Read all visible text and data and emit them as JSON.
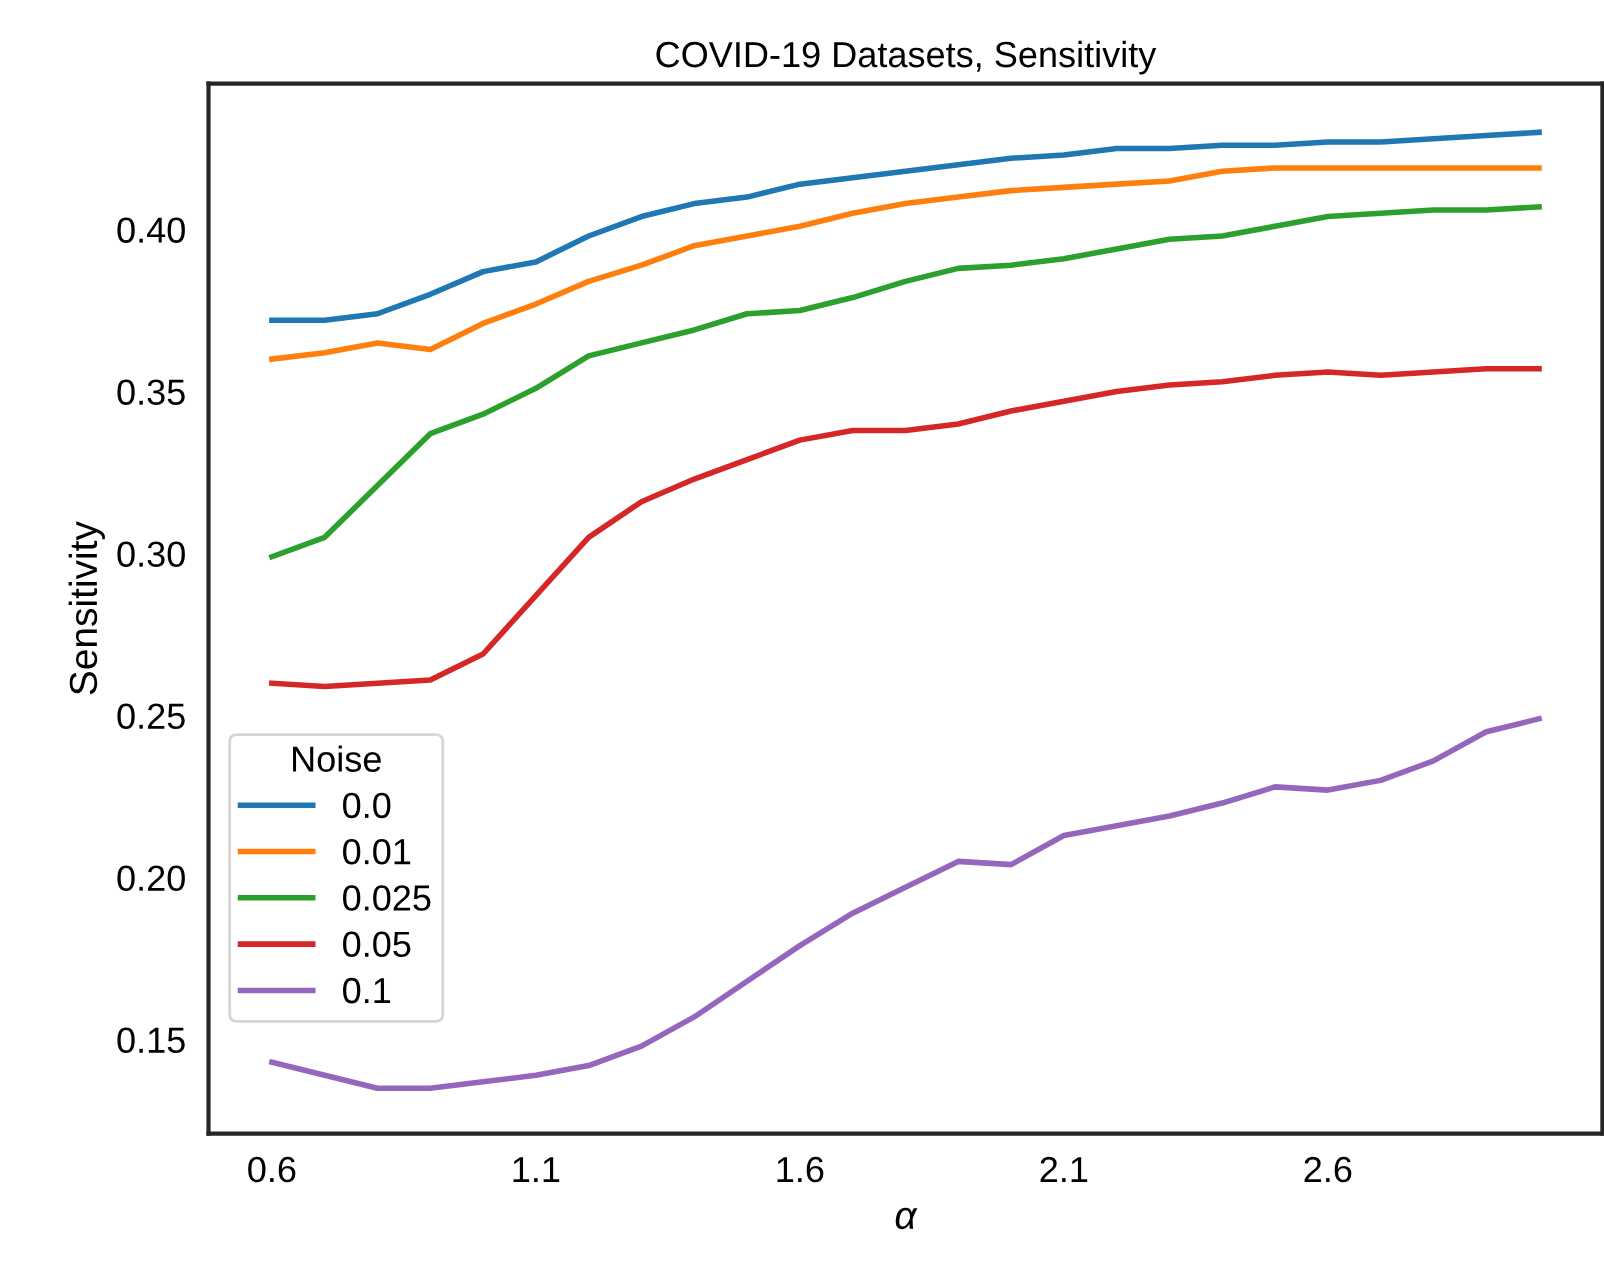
{
  "chart_data": {
    "type": "line",
    "title": "COVID-19 Datasets, Sensitivity",
    "xlabel": "α",
    "ylabel": "Sensitivity",
    "legend_title": "Noise",
    "legend": "bottom left",
    "grid": false,
    "marker": "none",
    "line_style": "solid",
    "x": [
      0.6,
      0.7,
      0.8,
      0.9,
      1.0,
      1.1,
      1.2,
      1.3,
      1.4,
      1.5,
      1.6,
      1.7,
      1.8,
      1.9,
      2.0,
      2.1,
      2.2,
      2.3,
      2.4,
      2.5,
      2.6,
      2.7,
      2.8,
      2.9,
      3.0
    ],
    "xlim": [
      0.48,
      3.12
    ],
    "xticks": [
      0.6,
      1.1,
      1.6,
      2.1,
      2.6
    ],
    "ylim": [
      0.121,
      0.445
    ],
    "yticks": [
      0.15,
      {
        "value": 0.2,
        "label": "0.20"
      },
      0.25,
      {
        "value": 0.3,
        "label": "0.30"
      },
      0.35,
      {
        "value": 0.4,
        "label": "0.40"
      }
    ],
    "series": [
      {
        "name": "0.0",
        "color": "#1f77b4",
        "values": [
          0.372,
          0.372,
          0.374,
          0.38,
          0.387,
          0.39,
          0.398,
          0.404,
          0.408,
          0.41,
          0.414,
          0.416,
          0.418,
          0.42,
          0.422,
          0.423,
          0.425,
          0.425,
          0.426,
          0.426,
          0.427,
          0.427,
          0.428,
          0.429,
          0.43
        ]
      },
      {
        "name": "0.01",
        "color": "#ff7f0e",
        "values": [
          0.36,
          0.362,
          0.365,
          0.363,
          0.371,
          0.377,
          0.384,
          0.389,
          0.395,
          0.398,
          0.401,
          0.405,
          0.408,
          0.41,
          0.412,
          0.413,
          0.414,
          0.415,
          0.418,
          0.419,
          0.419,
          0.419,
          0.419,
          0.419,
          0.419
        ]
      },
      {
        "name": "0.025",
        "color": "#2ca02c",
        "values": [
          0.299,
          0.305,
          0.321,
          0.337,
          0.343,
          0.351,
          0.361,
          0.365,
          0.369,
          0.374,
          0.375,
          0.379,
          0.384,
          0.388,
          0.389,
          0.391,
          0.394,
          0.397,
          0.398,
          0.401,
          0.404,
          0.405,
          0.406,
          0.406,
          0.407
        ]
      },
      {
        "name": "0.05",
        "color": "#d62728",
        "values": [
          0.26,
          0.259,
          0.26,
          0.261,
          0.269,
          0.287,
          0.305,
          0.316,
          0.323,
          0.329,
          0.335,
          0.338,
          0.338,
          0.34,
          0.344,
          0.347,
          0.35,
          0.352,
          0.353,
          0.355,
          0.356,
          0.355,
          0.356,
          0.357,
          0.357
        ]
      },
      {
        "name": "0.1",
        "color": "#9467bd",
        "values": [
          0.143,
          0.139,
          0.135,
          0.135,
          0.137,
          0.139,
          0.142,
          0.148,
          0.157,
          0.168,
          0.179,
          0.189,
          0.197,
          0.205,
          0.204,
          0.213,
          0.216,
          0.219,
          0.223,
          0.228,
          0.227,
          0.23,
          0.236,
          0.245,
          0.249
        ]
      }
    ]
  }
}
